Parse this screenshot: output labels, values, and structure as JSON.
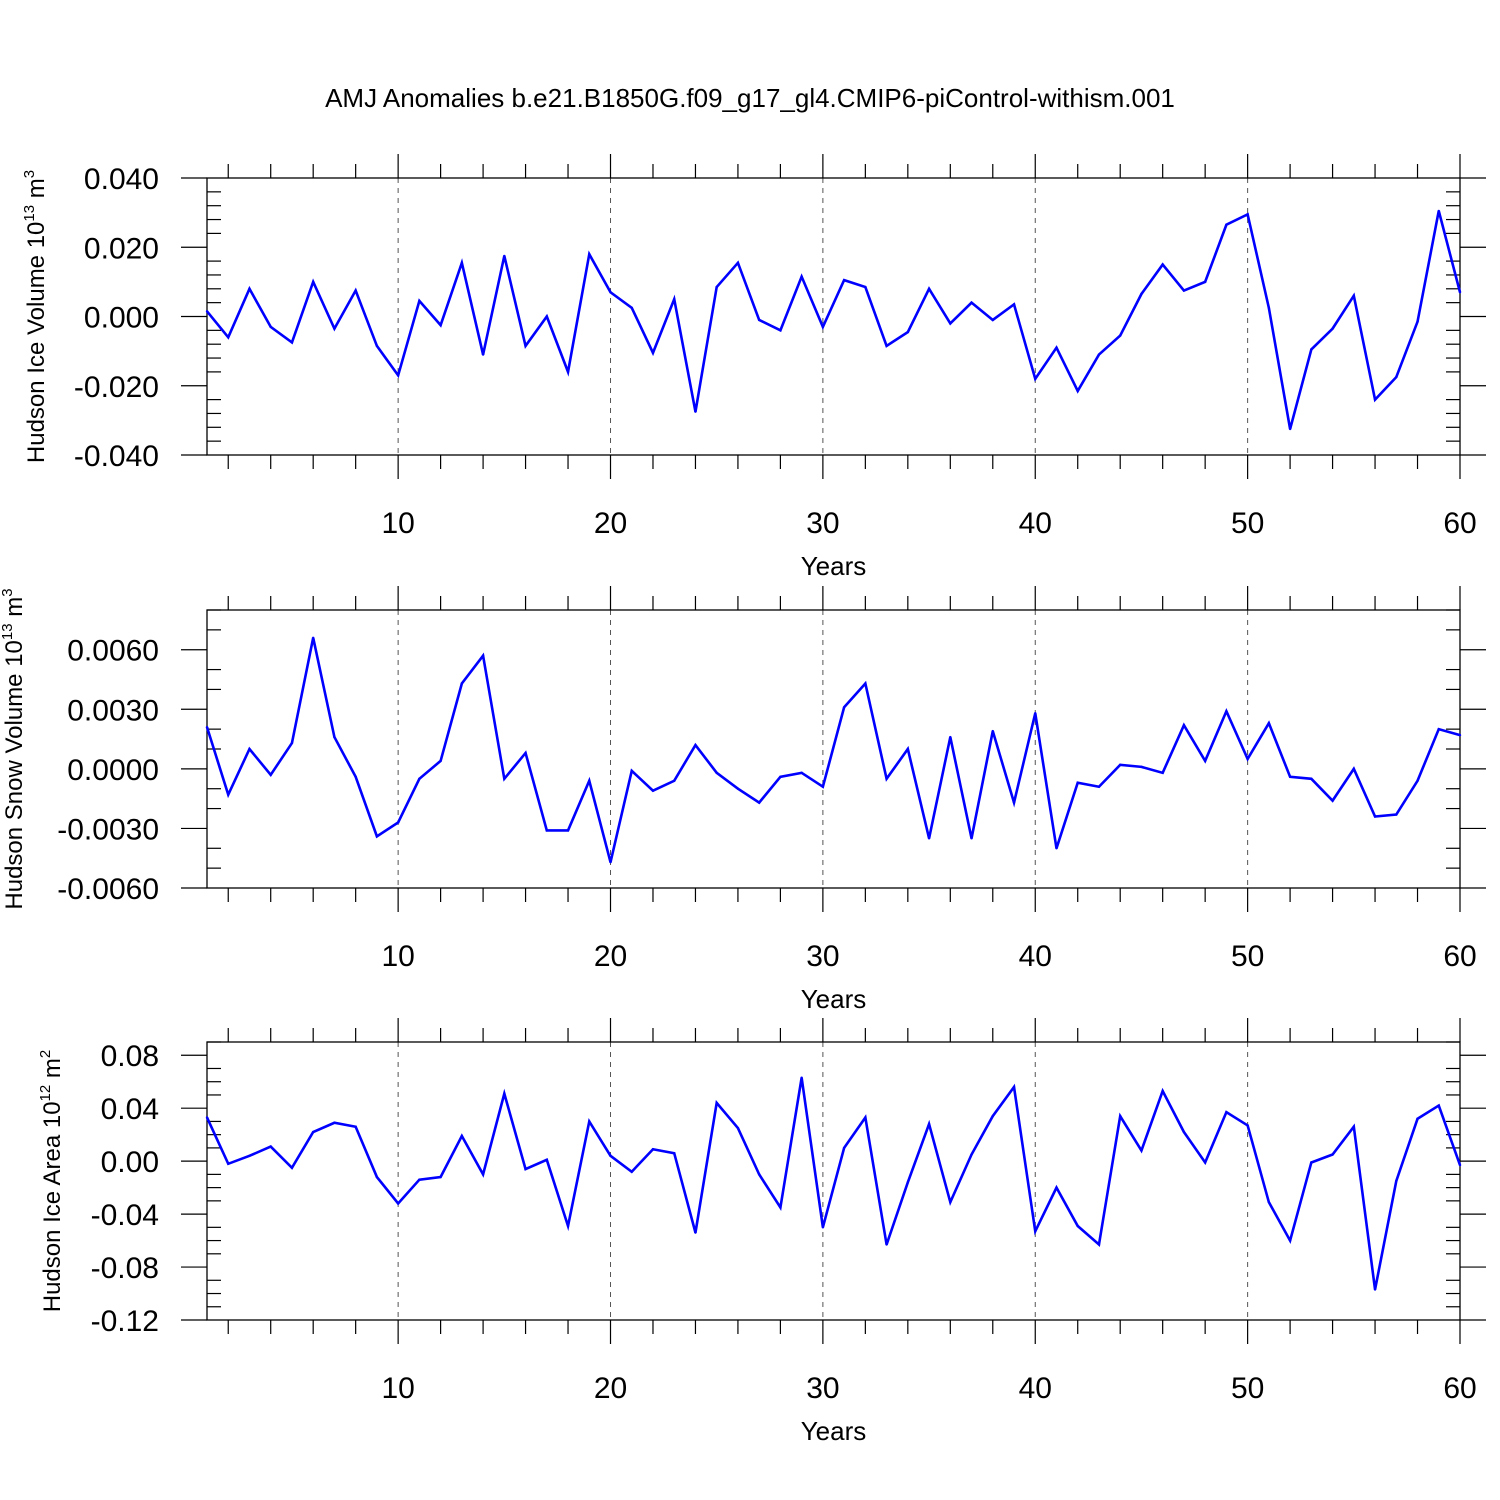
{
  "title": "AMJ Anomalies b.e21.B1850G.f09_g17_gl4.CMIP6-piControl-withism.001",
  "colors": {
    "line": "#0000ff",
    "axes": "#000000",
    "grid": "#555555"
  },
  "chart_data": [
    {
      "type": "line",
      "ylabel_main": "Hudson Ice Volume 10",
      "ylabel_exp": "13",
      "ylabel_unit": " m",
      "ylabel_unit_exp": "3",
      "xlabel": "Years",
      "xlim": [
        1,
        60
      ],
      "ylim": [
        -0.04,
        0.04
      ],
      "xticks": [
        10,
        20,
        30,
        40,
        50,
        60
      ],
      "xtick_labels": [
        "10",
        "20",
        "30",
        "40",
        "50",
        "60"
      ],
      "yticks": [
        -0.04,
        -0.02,
        0.0,
        0.02,
        0.04
      ],
      "ytick_labels": [
        "-0.040",
        "-0.020",
        "0.000",
        "0.020",
        "0.040"
      ],
      "yminor_step": 0.004,
      "grid_x": true,
      "x": [
        1,
        2,
        3,
        4,
        5,
        6,
        7,
        8,
        9,
        10,
        11,
        12,
        13,
        14,
        15,
        16,
        17,
        18,
        19,
        20,
        21,
        22,
        23,
        24,
        25,
        26,
        27,
        28,
        29,
        30,
        31,
        32,
        33,
        34,
        35,
        36,
        37,
        38,
        39,
        40,
        41,
        42,
        43,
        44,
        45,
        46,
        47,
        48,
        49,
        50,
        51,
        52,
        53,
        54,
        55,
        56,
        57,
        58,
        59,
        60
      ],
      "series": [
        {
          "name": "Hudson Ice Volume",
          "values": [
            0.0015,
            -0.006,
            0.008,
            -0.003,
            -0.0075,
            0.01,
            -0.0035,
            0.0075,
            -0.0085,
            -0.017,
            0.0045,
            -0.0025,
            0.0155,
            -0.011,
            0.0175,
            -0.0085,
            0.0,
            -0.016,
            0.018,
            0.007,
            0.0025,
            -0.0105,
            0.005,
            -0.0275,
            0.0085,
            0.0155,
            -0.001,
            -0.004,
            0.0115,
            -0.003,
            0.0105,
            0.0085,
            -0.0085,
            -0.0045,
            0.008,
            -0.002,
            0.004,
            -0.001,
            0.0035,
            -0.018,
            -0.009,
            -0.0215,
            -0.011,
            -0.0055,
            0.0065,
            0.015,
            0.0075,
            0.01,
            0.0265,
            0.0295,
            0.0025,
            -0.0325,
            -0.0095,
            -0.0035,
            0.006,
            -0.024,
            -0.0175,
            -0.0015,
            0.0305,
            0.007
          ]
        }
      ]
    },
    {
      "type": "line",
      "ylabel_main": "Hudson Snow Volume 10",
      "ylabel_exp": "13",
      "ylabel_unit": " m",
      "ylabel_unit_exp": "3",
      "xlabel": "Years",
      "xlim": [
        1,
        60
      ],
      "ylim": [
        -0.006,
        0.008
      ],
      "xticks": [
        10,
        20,
        30,
        40,
        50,
        60
      ],
      "xtick_labels": [
        "10",
        "20",
        "30",
        "40",
        "50",
        "60"
      ],
      "yticks": [
        -0.006,
        -0.003,
        0.0,
        0.003,
        0.006
      ],
      "ytick_labels": [
        "-0.0060",
        "-0.0030",
        "0.0000",
        "0.0030",
        "0.0060"
      ],
      "yminor_step": 0.001,
      "grid_x": true,
      "x": [
        1,
        2,
        3,
        4,
        5,
        6,
        7,
        8,
        9,
        10,
        11,
        12,
        13,
        14,
        15,
        16,
        17,
        18,
        19,
        20,
        21,
        22,
        23,
        24,
        25,
        26,
        27,
        28,
        29,
        30,
        31,
        32,
        33,
        34,
        35,
        36,
        37,
        38,
        39,
        40,
        41,
        42,
        43,
        44,
        45,
        46,
        47,
        48,
        49,
        50,
        51,
        52,
        53,
        54,
        55,
        56,
        57,
        58,
        59,
        60
      ],
      "series": [
        {
          "name": "Hudson Snow Volume",
          "values": [
            0.0021,
            -0.0013,
            0.001,
            -0.0003,
            0.0013,
            0.0066,
            0.0016,
            -0.0004,
            -0.0034,
            -0.0027,
            -0.0005,
            0.0004,
            0.0043,
            0.0057,
            -0.0005,
            0.0008,
            -0.0031,
            -0.0031,
            -0.0006,
            -0.0047,
            -0.0001,
            -0.0011,
            -0.0006,
            0.0012,
            -0.0002,
            -0.001,
            -0.0017,
            -0.0004,
            -0.0002,
            -0.0009,
            0.0031,
            0.0043,
            -0.0005,
            0.001,
            -0.0035,
            0.0016,
            -0.0035,
            0.0019,
            -0.0017,
            0.0028,
            -0.004,
            -0.0007,
            -0.0009,
            0.0002,
            0.0001,
            -0.0002,
            0.0022,
            0.0004,
            0.0029,
            0.0005,
            0.0023,
            -0.0004,
            -0.0005,
            -0.0016,
            0.0,
            -0.0024,
            -0.0023,
            -0.0006,
            0.002,
            0.0017
          ]
        }
      ]
    },
    {
      "type": "line",
      "ylabel_main": "Hudson Ice Area 10",
      "ylabel_exp": "12",
      "ylabel_unit": " m",
      "ylabel_unit_exp": "2",
      "xlabel": "Years",
      "xlim": [
        1,
        60
      ],
      "ylim": [
        -0.12,
        0.09
      ],
      "xticks": [
        10,
        20,
        30,
        40,
        50,
        60
      ],
      "xtick_labels": [
        "10",
        "20",
        "30",
        "40",
        "50",
        "60"
      ],
      "yticks": [
        -0.12,
        -0.08,
        -0.04,
        0.0,
        0.04,
        0.08
      ],
      "ytick_labels": [
        "-0.12",
        "-0.08",
        "-0.04",
        "0.00",
        "0.04",
        "0.08"
      ],
      "yminor_step": 0.01,
      "grid_x": true,
      "x": [
        1,
        2,
        3,
        4,
        5,
        6,
        7,
        8,
        9,
        10,
        11,
        12,
        13,
        14,
        15,
        16,
        17,
        18,
        19,
        20,
        21,
        22,
        23,
        24,
        25,
        26,
        27,
        28,
        29,
        30,
        31,
        32,
        33,
        34,
        35,
        36,
        37,
        38,
        39,
        40,
        41,
        42,
        43,
        44,
        45,
        46,
        47,
        48,
        49,
        50,
        51,
        52,
        53,
        54,
        55,
        56,
        57,
        58,
        59,
        60
      ],
      "series": [
        {
          "name": "Hudson Ice Area",
          "values": [
            0.033,
            -0.002,
            0.004,
            0.011,
            -0.005,
            0.022,
            0.029,
            0.026,
            -0.012,
            -0.032,
            -0.014,
            -0.012,
            0.019,
            -0.01,
            0.051,
            -0.006,
            0.001,
            -0.049,
            0.03,
            0.004,
            -0.008,
            0.009,
            0.006,
            -0.054,
            0.044,
            0.025,
            -0.01,
            -0.035,
            0.063,
            -0.05,
            0.01,
            0.033,
            -0.063,
            -0.016,
            0.028,
            -0.031,
            0.005,
            0.034,
            0.056,
            -0.053,
            -0.02,
            -0.049,
            -0.063,
            0.034,
            0.008,
            0.053,
            0.022,
            -0.001,
            0.037,
            0.027,
            -0.031,
            -0.06,
            -0.001,
            0.005,
            0.026,
            -0.097,
            -0.015,
            0.032,
            0.042,
            -0.003
          ]
        }
      ]
    }
  ]
}
